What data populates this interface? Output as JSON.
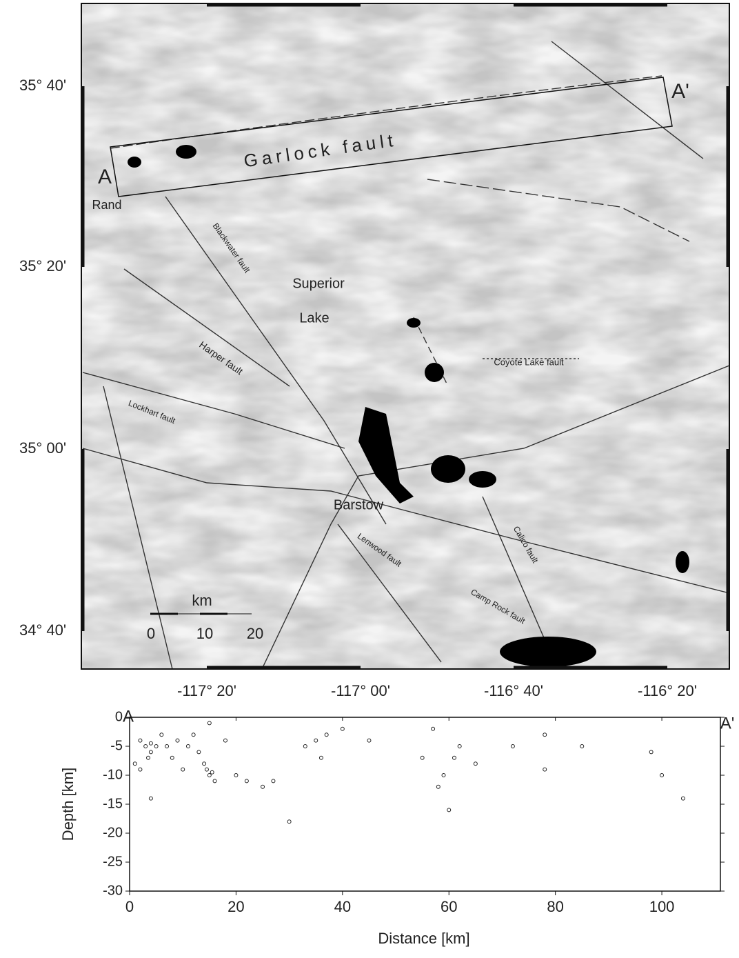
{
  "map": {
    "latitude_labels": [
      "35° 40'",
      "35° 20'",
      "35° 00'",
      "34° 40'"
    ],
    "longitude_labels": [
      "-117° 20'",
      "-117° 00'",
      "-116° 40'",
      "-116° 20'"
    ],
    "profile_start": "A",
    "profile_end": "A'",
    "places": {
      "rand": "Rand",
      "superior": "Superior",
      "lake": "Lake",
      "barstow": "Barstow"
    },
    "faults": {
      "garlock": "Garlock fault",
      "blackwater": "Blackwater fault",
      "harper": "Harper fault",
      "lockhart": "Lockhart fault",
      "coyote": "Coyote Lake fault",
      "lenwood": "Lenwood fault",
      "calico": "Calico fault",
      "camp_rock": "Camp Rock fault"
    },
    "scale": {
      "unit": "km",
      "ticks": [
        0,
        10,
        20
      ]
    }
  },
  "chart_data": {
    "type": "scatter",
    "start_label": "A",
    "end_label": "A'",
    "x_label": "Distance [km]",
    "y_label": "Depth [km]",
    "x": [
      2,
      3,
      4,
      4,
      5,
      3.5,
      6,
      7,
      8,
      9,
      10,
      11,
      12,
      13,
      14,
      14.5,
      15,
      15.5,
      16,
      15,
      18,
      20,
      22,
      25,
      27,
      30,
      33,
      35,
      36,
      37,
      40,
      45,
      55,
      57,
      58,
      59,
      60,
      61,
      62,
      65,
      72,
      78,
      78,
      85,
      98,
      100,
      104,
      2,
      4,
      1
    ],
    "values": [
      -4,
      -5,
      -4.5,
      -6,
      -5,
      -7,
      -3,
      -5,
      -7,
      -4,
      -9,
      -5,
      -3,
      -6,
      -8,
      -9,
      -10,
      -9.5,
      -11,
      -1,
      -4,
      -10,
      -11,
      -12,
      -11,
      -18,
      -5,
      -4,
      -7,
      -3,
      -2,
      -4,
      -7,
      -2,
      -12,
      -10,
      -16,
      -7,
      -5,
      -8,
      -5,
      -3,
      -9,
      -5,
      -6,
      -10,
      -14,
      -9,
      -14,
      -8
    ],
    "color": "#222222",
    "xlim": [
      0,
      111
    ],
    "ylim": [
      -30,
      0
    ],
    "xticks": [
      0,
      20,
      40,
      60,
      80,
      100
    ],
    "yticks": [
      0,
      -5,
      -10,
      -15,
      -20,
      -25,
      -30
    ]
  }
}
